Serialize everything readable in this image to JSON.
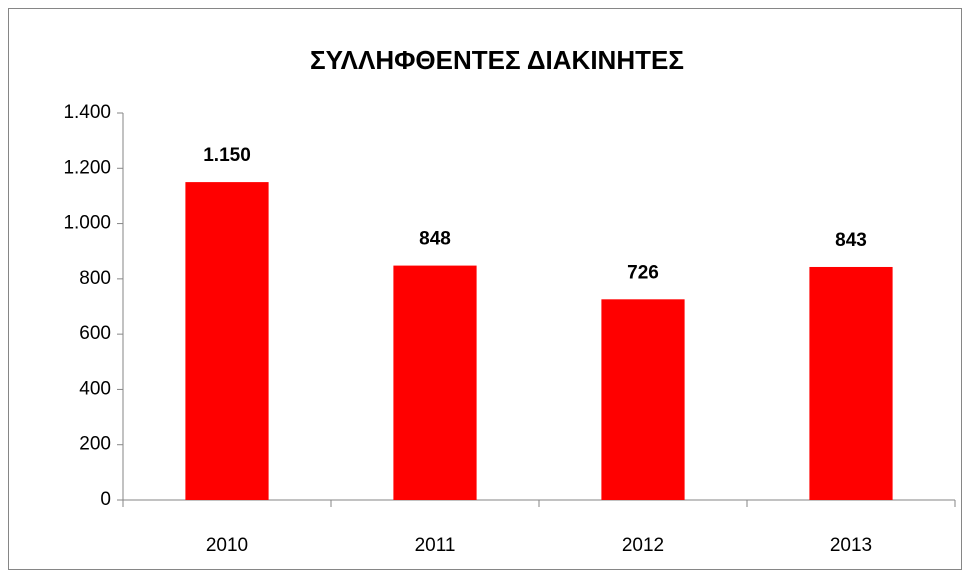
{
  "chart_data": {
    "type": "bar",
    "title": "ΣΥΛΛΗΦΘΕΝΤΕΣ ΔΙΑΚΙΝΗΤΕΣ",
    "categories": [
      "2010",
      "2011",
      "2012",
      "2013"
    ],
    "values": [
      1150,
      848,
      726,
      843
    ],
    "value_labels": [
      "1.150",
      "848",
      "726",
      "843"
    ],
    "color": "#ff0000",
    "ylim": [
      0,
      1400
    ],
    "yticks": [
      0,
      200,
      400,
      600,
      800,
      {
        "value": 1000,
        "label": "1.000"
      },
      {
        "value": 1200,
        "label": "1.200"
      },
      {
        "value": 1400,
        "label": "1.400"
      }
    ],
    "grid": false
  }
}
